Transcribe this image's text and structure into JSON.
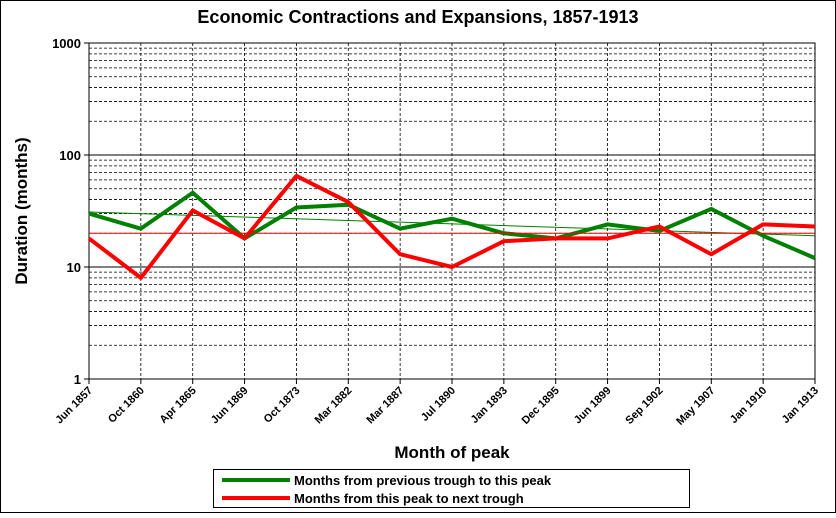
{
  "chart_data": {
    "type": "line",
    "title": "Economic Contractions and Expansions, 1857-1913",
    "x_label": "Month of peak",
    "y_label": "Duration (months)",
    "categories": [
      "Jun 1857",
      "Oct 1860",
      "Apr 1865",
      "Jun 1869",
      "Oct 1873",
      "Mar 1882",
      "Mar 1887",
      "Jul 1890",
      "Jan 1893",
      "Dec 1895",
      "Jun 1899",
      "Sep 1902",
      "May 1907",
      "Jan 1910",
      "Jan 1913"
    ],
    "series": [
      {
        "name": "Months from previous trough to this peak",
        "color": "#008000",
        "values": [
          30,
          22,
          46,
          18,
          34,
          36,
          22,
          27,
          20,
          18,
          24,
          21,
          33,
          19,
          12
        ],
        "trend": [
          31,
          19
        ]
      },
      {
        "name": "Months from this peak to next trough",
        "color": "#ff0000",
        "values": [
          18,
          8,
          32,
          18,
          65,
          38,
          13,
          10,
          17,
          18,
          18,
          23,
          13,
          24,
          23
        ],
        "trend": [
          20,
          20
        ]
      }
    ],
    "ylim": [
      1,
      1000
    ],
    "yticks": [
      1,
      10,
      100,
      1000
    ],
    "log_scale": true,
    "grid": true,
    "legend": "bottom"
  }
}
